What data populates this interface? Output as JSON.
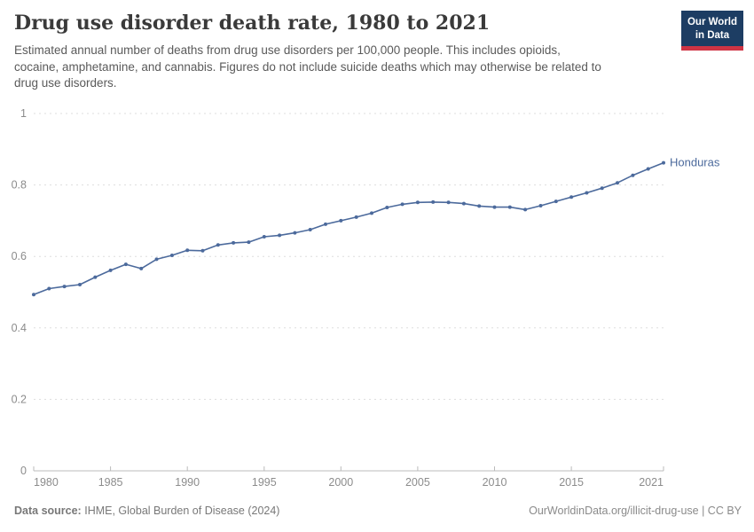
{
  "header": {
    "title": "Drug use disorder death rate, 1980 to 2021",
    "subtitle_lines": [
      "Estimated annual number of deaths from drug use disorders per 100,000 people. This includes opioids,",
      "cocaine, amphetamine, and cannabis. Figures do not include suicide deaths which may otherwise be related to",
      "drug use disorders."
    ],
    "logo": {
      "line1": "Our World",
      "line2": "in Data"
    }
  },
  "colors": {
    "line": "#4C6A9C",
    "entity_label": "#4C6A9C",
    "grid": "#dddddd",
    "axis": "#bbbbbb",
    "tick_label": "#8c8c8c",
    "logo_bg": "#1d3d63",
    "logo_accent": "#cf3444"
  },
  "chart_data": {
    "type": "line",
    "title": "Drug use disorder death rate, 1980 to 2021",
    "entity": "Honduras",
    "x": [
      1980,
      1981,
      1982,
      1983,
      1984,
      1985,
      1986,
      1987,
      1988,
      1989,
      1990,
      1991,
      1992,
      1993,
      1994,
      1995,
      1996,
      1997,
      1998,
      1999,
      2000,
      2001,
      2002,
      2003,
      2004,
      2005,
      2006,
      2007,
      2008,
      2009,
      2010,
      2011,
      2012,
      2013,
      2014,
      2015,
      2016,
      2017,
      2018,
      2019,
      2020,
      2021
    ],
    "series": [
      {
        "name": "Honduras",
        "values": [
          0.493,
          0.51,
          0.516,
          0.521,
          0.542,
          0.561,
          0.578,
          0.566,
          0.592,
          0.603,
          0.617,
          0.616,
          0.632,
          0.638,
          0.64,
          0.655,
          0.659,
          0.666,
          0.675,
          0.69,
          0.7,
          0.71,
          0.721,
          0.737,
          0.746,
          0.751,
          0.752,
          0.751,
          0.748,
          0.741,
          0.738,
          0.738,
          0.731,
          0.742,
          0.754,
          0.766,
          0.778,
          0.791,
          0.806,
          0.827,
          0.845,
          0.862
        ]
      }
    ],
    "xlim": [
      1980,
      2021
    ],
    "ylim": [
      0,
      1
    ],
    "yticks": [
      {
        "v": 0,
        "label": "0"
      },
      {
        "v": 0.2,
        "label": "0.2"
      },
      {
        "v": 0.4,
        "label": "0.4"
      },
      {
        "v": 0.6,
        "label": "0.6"
      },
      {
        "v": 0.8,
        "label": "0.8"
      },
      {
        "v": 1,
        "label": "1"
      }
    ],
    "xticks": [
      {
        "v": 1980,
        "label": "1980",
        "anchor": "start"
      },
      {
        "v": 1985,
        "label": "1985",
        "anchor": "middle"
      },
      {
        "v": 1990,
        "label": "1990",
        "anchor": "middle"
      },
      {
        "v": 1995,
        "label": "1995",
        "anchor": "middle"
      },
      {
        "v": 2000,
        "label": "2000",
        "anchor": "middle"
      },
      {
        "v": 2005,
        "label": "2005",
        "anchor": "middle"
      },
      {
        "v": 2010,
        "label": "2010",
        "anchor": "middle"
      },
      {
        "v": 2015,
        "label": "2015",
        "anchor": "middle"
      },
      {
        "v": 2021,
        "label": "2021",
        "anchor": "end"
      }
    ],
    "grid": "horizontal-dashed",
    "legend_position": "end-of-line-label"
  },
  "footer": {
    "source_label": "Data source:",
    "source_value": "IHME, Global Burden of Disease (2024)",
    "right_text": "OurWorldinData.org/illicit-drug-use | CC BY"
  }
}
